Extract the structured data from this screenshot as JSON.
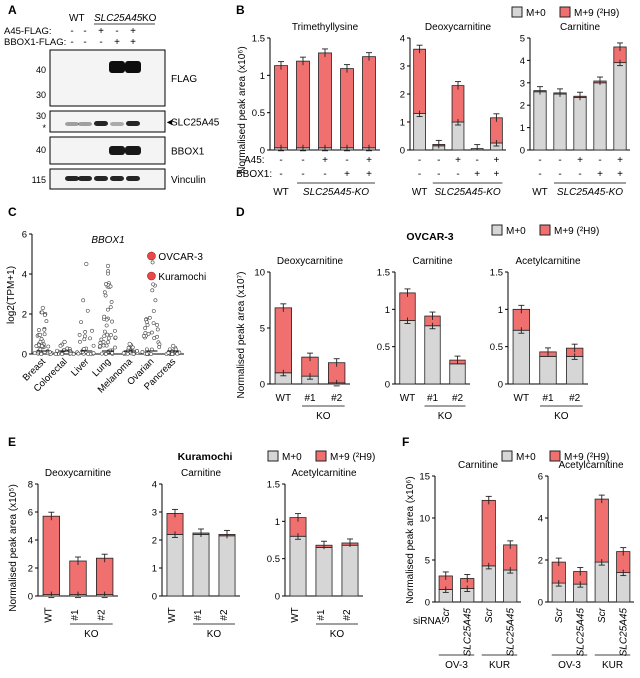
{
  "colors": {
    "m0": "#d6d6d6",
    "m9": "#f07070",
    "text": "#000000",
    "blot_bg": "#ffffff"
  },
  "panels": {
    "A": "A",
    "B": "B",
    "C": "C",
    "D": "D",
    "E": "E",
    "F": "F"
  },
  "panelA": {
    "header": {
      "wt": "WT",
      "slc": "SLC25A45",
      "ko": "KO"
    },
    "rows": [
      {
        "label": "A45-FLAG:",
        "marks": [
          "-",
          "-",
          "+",
          "-",
          "+"
        ]
      },
      {
        "label": "BBOX1-FLAG:",
        "marks": [
          "-",
          "-",
          "-",
          "+",
          "+"
        ]
      }
    ],
    "blots": [
      {
        "name": "FLAG",
        "markers": [
          "40",
          "30"
        ]
      },
      {
        "name": "SLC25A45",
        "markers": [
          "30",
          "*"
        ]
      },
      {
        "name": "BBOX1",
        "markers": [
          "40"
        ]
      },
      {
        "name": "Vinculin",
        "markers": [
          "115"
        ]
      }
    ],
    "arrow": "◄"
  },
  "legend": {
    "m0": "M+0",
    "m9": "M+9 (²H9)"
  },
  "ylabels": {
    "b": "Normalised peak area (x10⁶)",
    "c": "log2(TPM+1)",
    "d": "Normalised peak area (x10⁷)",
    "e": "Normalised peak area (x10⁵)",
    "f": "Normalised peak area (x10⁶)"
  },
  "cellLines": {
    "d": "OVCAR-3",
    "e": "Kuramochi"
  },
  "conditions": {
    "a45": "A45:",
    "bbox1": "BBOX1:",
    "wt": "WT",
    "slcko": "SLC25A45-KO",
    "ko": "KO",
    "siRNA": "siRNA:",
    "ov3": "OV-3",
    "kur": "KUR"
  },
  "chart_data": [
    {
      "type": "bar",
      "panel": "B",
      "title": "Trimethyllysine",
      "ylim": [
        0,
        1.5
      ],
      "ticks": [
        "0",
        "0.5",
        "1",
        "1.5"
      ],
      "categories": [
        "WT",
        "KO",
        "KO+A45",
        "KO+BBOX1",
        "KO+A45+BBOX1"
      ],
      "series": [
        {
          "name": "M+0",
          "values": [
            0.03,
            0.03,
            0.03,
            0.03,
            0.03
          ]
        },
        {
          "name": "M+9",
          "values": [
            1.1,
            1.16,
            1.27,
            1.06,
            1.22
          ]
        }
      ],
      "a45": [
        "-",
        "-",
        "+",
        "-",
        "+"
      ],
      "bbox1": [
        "-",
        "-",
        "-",
        "+",
        "+"
      ]
    },
    {
      "type": "bar",
      "panel": "B",
      "title": "Deoxycarnitine",
      "ylim": [
        0,
        4
      ],
      "ticks": [
        "0",
        "1",
        "2",
        "3",
        "4"
      ],
      "categories": [
        "WT",
        "KO",
        "KO+A45",
        "KO+BBOX1",
        "KO+A45+BBOX1"
      ],
      "series": [
        {
          "name": "M+0",
          "values": [
            1.3,
            0.15,
            1.0,
            0.0,
            0.25
          ]
        },
        {
          "name": "M+9",
          "values": [
            2.3,
            0.05,
            1.3,
            0.05,
            0.9
          ]
        }
      ],
      "a45": [
        "-",
        "-",
        "+",
        "-",
        "+"
      ],
      "bbox1": [
        "-",
        "-",
        "-",
        "+",
        "+"
      ]
    },
    {
      "type": "bar",
      "panel": "B",
      "title": "Carnitine",
      "ylim": [
        0,
        5
      ],
      "ticks": [
        "0",
        "1",
        "2",
        "3",
        "4",
        "5"
      ],
      "categories": [
        "WT",
        "KO",
        "KO+A45",
        "KO+BBOX1",
        "KO+A45+BBOX1"
      ],
      "series": [
        {
          "name": "M+0",
          "values": [
            2.6,
            2.5,
            2.35,
            3.0,
            3.9
          ]
        },
        {
          "name": "M+9",
          "values": [
            0.05,
            0.05,
            0.05,
            0.08,
            0.7
          ]
        }
      ],
      "a45": [
        "-",
        "-",
        "+",
        "-",
        "+"
      ],
      "bbox1": [
        "-",
        "-",
        "-",
        "+",
        "+"
      ]
    },
    {
      "type": "scatter",
      "panel": "C",
      "title": "BBOX1",
      "ylim": [
        0,
        6
      ],
      "ticks": [
        "0",
        "2",
        "4",
        "6"
      ],
      "categories": [
        "Breast",
        "Colorectal",
        "Liver",
        "Lung",
        "Melanoma",
        "Ovarian",
        "Pancreas"
      ],
      "highlights": [
        {
          "label": "OVCAR-3",
          "category": "Ovarian",
          "value": 4.9
        },
        {
          "label": "Kuramochi",
          "category": "Ovarian",
          "value": 3.9
        }
      ],
      "max_values": [
        2.3,
        0.6,
        4.5,
        4.4,
        0.5,
        5.0,
        0.4
      ]
    },
    {
      "type": "bar",
      "panel": "D",
      "title": "Deoxycarnitine",
      "ylim": [
        0,
        10
      ],
      "ticks": [
        "0",
        "5",
        "10"
      ],
      "categories": [
        "WT",
        "#1",
        "#2"
      ],
      "series": [
        {
          "name": "M+0",
          "values": [
            1.0,
            0.7,
            0.1
          ]
        },
        {
          "name": "M+9",
          "values": [
            5.8,
            1.7,
            1.8
          ]
        }
      ]
    },
    {
      "type": "bar",
      "panel": "D",
      "title": "Carnitine",
      "ylim": [
        0,
        1.5
      ],
      "ticks": [
        "0",
        "0.5",
        "1",
        "1.5"
      ],
      "categories": [
        "WT",
        "#1",
        "#2"
      ],
      "series": [
        {
          "name": "M+0",
          "values": [
            0.85,
            0.78,
            0.27
          ]
        },
        {
          "name": "M+9",
          "values": [
            0.37,
            0.13,
            0.05
          ]
        }
      ]
    },
    {
      "type": "bar",
      "panel": "D",
      "title": "Acetylcarnitine",
      "ylim": [
        0,
        1.5
      ],
      "ticks": [
        "0",
        "0.5",
        "1",
        "1.5"
      ],
      "categories": [
        "WT",
        "#1",
        "#2"
      ],
      "series": [
        {
          "name": "M+0",
          "values": [
            0.72,
            0.37,
            0.37
          ]
        },
        {
          "name": "M+9",
          "values": [
            0.28,
            0.06,
            0.11
          ]
        }
      ]
    },
    {
      "type": "bar",
      "panel": "E",
      "title": "Deoxycarnitine",
      "ylim": [
        0,
        8
      ],
      "ticks": [
        "0",
        "2",
        "4",
        "6",
        "8"
      ],
      "categories": [
        "WT",
        "#1",
        "#2"
      ],
      "series": [
        {
          "name": "M+0",
          "values": [
            0.1,
            0.1,
            0.1
          ]
        },
        {
          "name": "M+9",
          "values": [
            5.6,
            2.4,
            2.6
          ]
        }
      ]
    },
    {
      "type": "bar",
      "panel": "E",
      "title": "Carnitine",
      "ylim": [
        0,
        4
      ],
      "ticks": [
        "0",
        "1",
        "2",
        "3",
        "4"
      ],
      "categories": [
        "WT",
        "#1",
        "#2"
      ],
      "series": [
        {
          "name": "M+0",
          "values": [
            2.2,
            2.2,
            2.15
          ]
        },
        {
          "name": "M+9",
          "values": [
            0.75,
            0.05,
            0.05
          ]
        }
      ]
    },
    {
      "type": "bar",
      "panel": "E",
      "title": "Acetylcarnitine",
      "ylim": [
        0,
        1.5
      ],
      "ticks": [
        "0",
        "0.5",
        "1",
        "1.5"
      ],
      "categories": [
        "WT",
        "#1",
        "#2"
      ],
      "series": [
        {
          "name": "M+0",
          "values": [
            0.8,
            0.65,
            0.68
          ]
        },
        {
          "name": "M+9",
          "values": [
            0.25,
            0.03,
            0.03
          ]
        }
      ]
    },
    {
      "type": "bar",
      "panel": "F",
      "title": "Carnitine",
      "ylim": [
        0,
        15
      ],
      "ticks": [
        "0",
        "5",
        "10",
        "15"
      ],
      "categories": [
        "Scr",
        "SLC25A45",
        "Scr",
        "SLC25A45"
      ],
      "series": [
        {
          "name": "M+0",
          "values": [
            1.5,
            1.6,
            4.3,
            3.8
          ]
        },
        {
          "name": "M+9",
          "values": [
            1.6,
            1.2,
            7.8,
            3.0
          ]
        }
      ]
    },
    {
      "type": "bar",
      "panel": "F",
      "title": "Acetylcarnitine",
      "ylim": [
        0,
        6
      ],
      "ticks": [
        "0",
        "2",
        "4",
        "6"
      ],
      "categories": [
        "Scr",
        "SLC25A45",
        "Scr",
        "SLC25A45"
      ],
      "series": [
        {
          "name": "M+0",
          "values": [
            0.9,
            0.85,
            1.9,
            1.4
          ]
        },
        {
          "name": "M+9",
          "values": [
            1.0,
            0.6,
            3.0,
            1.0
          ]
        }
      ]
    }
  ]
}
